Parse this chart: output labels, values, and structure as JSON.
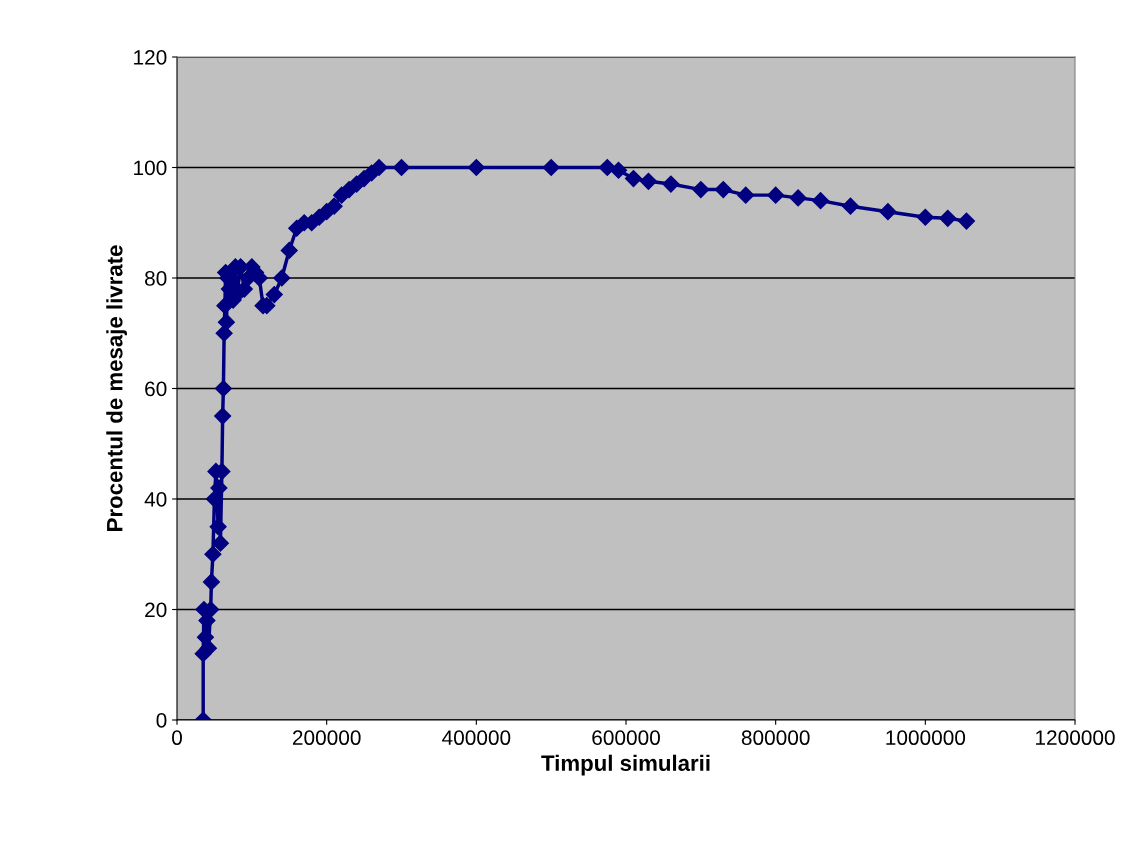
{
  "chart_data": {
    "type": "line",
    "xlabel": "Timpul simularii",
    "ylabel": "Procentul de mesaje livrate",
    "x": [
      35000,
      35000,
      36000,
      38000,
      40000,
      42000,
      45000,
      46000,
      48000,
      50000,
      52000,
      55000,
      56000,
      58000,
      60000,
      61000,
      62000,
      63000,
      64000,
      65000,
      66000,
      68000,
      70000,
      72000,
      75000,
      78000,
      80000,
      85000,
      90000,
      95000,
      100000,
      105000,
      110000,
      115000,
      120000,
      130000,
      140000,
      150000,
      160000,
      170000,
      180000,
      190000,
      200000,
      210000,
      220000,
      230000,
      240000,
      250000,
      260000,
      270000,
      300000,
      400000,
      500000,
      575000,
      590000,
      610000,
      630000,
      660000,
      700000,
      730000,
      760000,
      800000,
      830000,
      860000,
      900000,
      950000,
      1000000,
      1030000,
      1055000
    ],
    "series": [
      {
        "color": "#000080",
        "values": [
          0,
          12,
          20,
          15,
          18,
          13,
          20,
          25,
          30,
          40,
          45,
          35,
          42,
          32,
          45,
          55,
          60,
          70,
          75,
          81,
          72,
          80,
          78,
          81,
          76,
          82,
          77,
          82,
          78,
          80,
          82,
          81,
          80,
          75,
          75,
          77,
          80,
          85,
          89,
          90,
          90,
          91,
          92,
          93,
          95,
          96,
          97,
          98,
          99,
          100,
          100,
          100,
          100,
          100,
          99.5,
          98,
          97.5,
          97,
          96,
          96,
          95,
          95,
          94.5,
          94,
          93,
          92,
          91,
          90.8,
          90.3
        ]
      }
    ],
    "xlim": [
      0,
      1200000
    ],
    "xticks": [
      0,
      200000,
      400000,
      600000,
      800000,
      1000000,
      1200000
    ],
    "ylim": [
      0,
      120
    ],
    "yticks": [
      0,
      20,
      40,
      60,
      80,
      100,
      120
    ],
    "grid": "y",
    "marker": "diamond",
    "line_style": "solid"
  }
}
